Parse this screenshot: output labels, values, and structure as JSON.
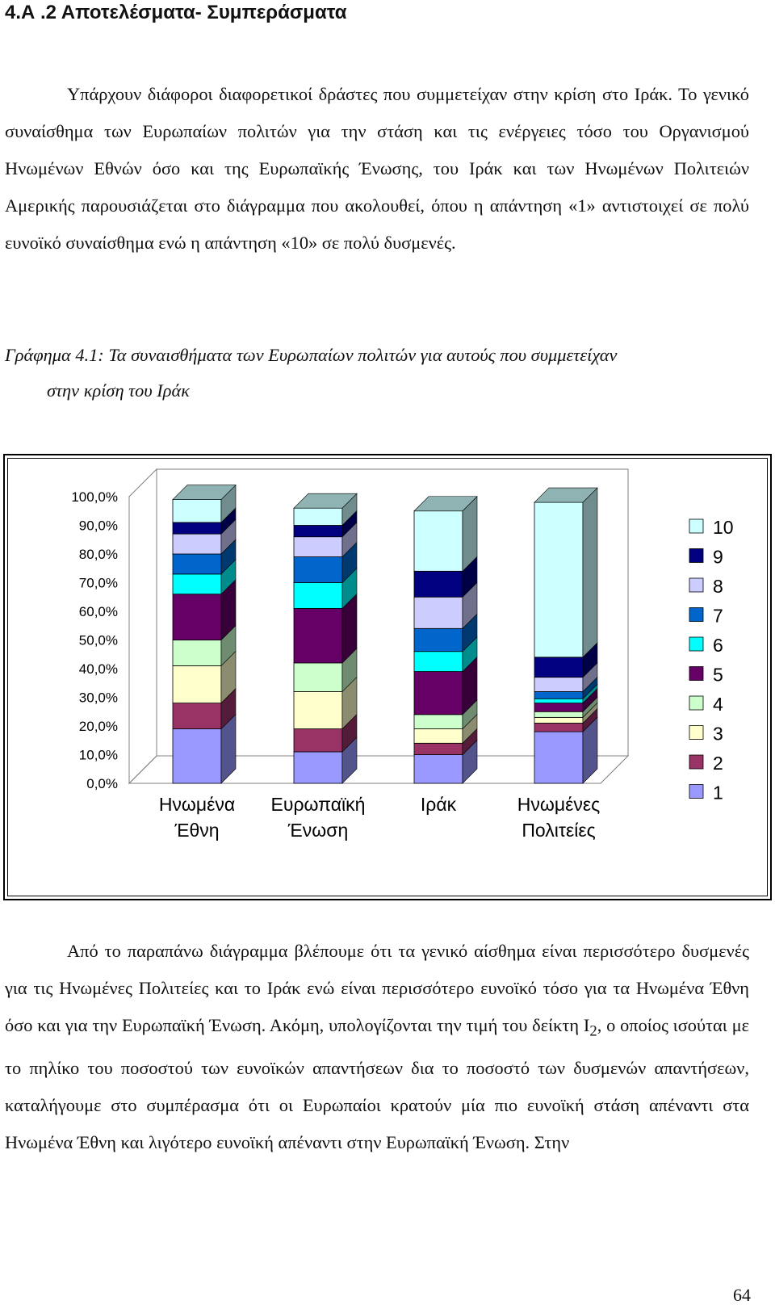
{
  "heading": "4.Α .2 Αποτελέσματα- Συμπεράσματα",
  "paragraph1": "Υπάρχουν διάφοροι διαφορετικοί δράστες που συμμετείχαν στην κρίση στο Ιράκ. Το γενικό συναίσθημα των Ευρωπαίων πολιτών για την στάση και τις ενέργειες τόσο του Οργανισμού Ηνωμένων Εθνών όσο και της Ευρωπαϊκής Ένωσης, του Ιράκ και των Ηνωμένων Πολιτειών Αμερικής παρουσιάζεται στο διάγραμμα που ακολουθεί, όπου η απάντηση «1» αντιστοιχεί σε πολύ ευνοϊκό συναίσθημα ενώ η απάντηση «10» σε πολύ δυσμενές.",
  "caption": {
    "line1": "Γράφημα 4.1: Τα συναισθήματα των Ευρωπαίων πολιτών για αυτούς που συμμετείχαν",
    "line2": "στην κρίση του Ιράκ"
  },
  "chart_data": {
    "type": "bar",
    "stacked": "percent",
    "three_d": true,
    "categories": [
      [
        "Ηνωμένα",
        "Έθνη"
      ],
      [
        "Ευρωπαϊκή",
        "Ένωση"
      ],
      [
        "Ιράκ"
      ],
      [
        "Ηνωμένες",
        "Πολιτείες"
      ]
    ],
    "y_ticks": [
      "0,0%",
      "10,0%",
      "20,0%",
      "30,0%",
      "40,0%",
      "50,0%",
      "60,0%",
      "70,0%",
      "80,0%",
      "90,0%",
      "100,0%"
    ],
    "ylim": [
      0,
      100
    ],
    "legend_position": "right",
    "series": [
      {
        "name": "1",
        "color": "#9999ff",
        "values": [
          19,
          11,
          10,
          18
        ]
      },
      {
        "name": "2",
        "color": "#993366",
        "values": [
          9,
          8,
          4,
          3
        ]
      },
      {
        "name": "3",
        "color": "#ffffcc",
        "values": [
          13,
          13,
          5,
          2
        ]
      },
      {
        "name": "4",
        "color": "#ccffcc",
        "values": [
          9,
          10,
          5,
          2
        ]
      },
      {
        "name": "5",
        "color": "#660066",
        "values": [
          16,
          19,
          15,
          3
        ]
      },
      {
        "name": "6",
        "color": "#00ffff",
        "values": [
          7,
          9,
          7,
          1.5
        ]
      },
      {
        "name": "7",
        "color": "#0066cc",
        "values": [
          7,
          9,
          8,
          2.5
        ]
      },
      {
        "name": "8",
        "color": "#ccccff",
        "values": [
          7,
          7,
          11,
          5
        ]
      },
      {
        "name": "9",
        "color": "#000080",
        "values": [
          4,
          4,
          9,
          7
        ]
      },
      {
        "name": "10",
        "color": "#ccffff",
        "values": [
          8,
          6,
          21,
          54
        ]
      }
    ]
  },
  "paragraph2": "Από το παραπάνω διάγραμμα βλέπουμε ότι τα γενικό αίσθημα είναι περισσότερο δυσμενές για τις Ηνωμένες Πολιτείες και το Ιράκ ενώ είναι περισσότερο ευνοϊκό τόσο για τα Ηνωμένα Έθνη όσο και για την Ευρωπαϊκή Ένωση. Ακόμη, υπολογίζονται την τιμή του δείκτη I",
  "paragraph2_sub": "2",
  "paragraph2_tail": ", ο οποίος ισούται με το πηλίκο του ποσοστού των ευνοϊκών απαντήσεων δια το ποσοστό των δυσμενών απαντήσεων, καταλήγουμε στο συμπέρασμα ότι οι Ευρωπαίοι κρατούν μία πιο ευνοϊκή στάση απέναντι στα Ηνωμένα Έθνη και λιγότερο ευνοϊκή απέναντι στην Ευρωπαϊκή Ένωση. Στην",
  "page_number": "64"
}
